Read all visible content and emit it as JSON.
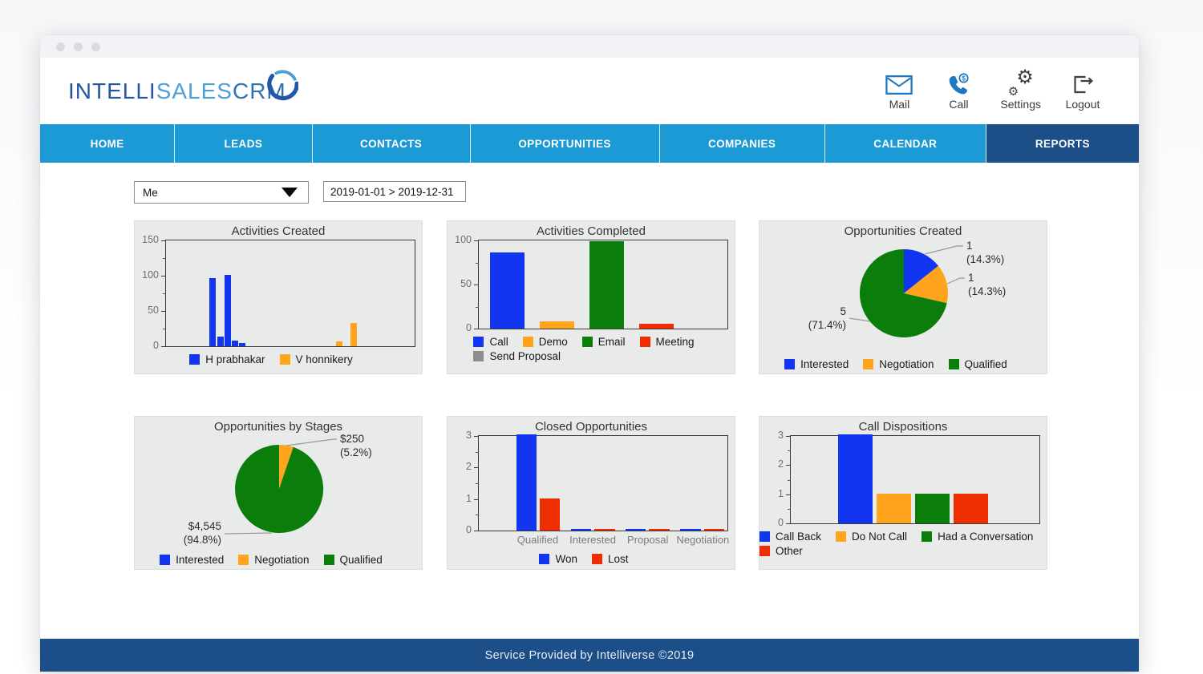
{
  "header": {
    "logo": {
      "part1": "INTELLI",
      "part2": "SALES",
      "part3": "CRM"
    },
    "actions": [
      {
        "label": "Mail"
      },
      {
        "label": "Call"
      },
      {
        "label": "Settings"
      },
      {
        "label": "Logout"
      }
    ]
  },
  "nav": {
    "tabs": [
      {
        "label": "HOME"
      },
      {
        "label": "LEADS"
      },
      {
        "label": "CONTACTS"
      },
      {
        "label": "OPPORTUNITIES"
      },
      {
        "label": "COMPANIES"
      },
      {
        "label": "CALENDAR"
      },
      {
        "label": "REPORTS",
        "active": true
      }
    ]
  },
  "filters": {
    "owner_select": {
      "value": "Me"
    },
    "date_range": {
      "value": "2019-01-01 > 2019-12-31"
    }
  },
  "colors": {
    "nav_blue": "#1b9ad6",
    "nav_active": "#1c4e87",
    "footer_bg": "#1c4e87",
    "icon_blue": "#1d78c1",
    "icon_gray": "#3f3f3f",
    "logo_dark": "#2456a6",
    "logo_light": "#4f9fd6",
    "logo_mid": "#2e72b4",
    "panel_bg": "#e9eaea",
    "series_blue": "#1236f0",
    "series_orange": "#ffa41c",
    "series_green": "#0a7d0a",
    "series_red": "#ee2e00",
    "series_gray": "#8d8d8d"
  },
  "charts": [
    {
      "chart_data": {
        "type": "bar",
        "title": "Activities Created",
        "ylim": [
          0,
          150
        ],
        "yticks": [
          0,
          50,
          100,
          150
        ],
        "bar_width": 0.026,
        "bars": [
          {
            "x": 0.175,
            "value": 95,
            "color": "#1236f0",
            "series": "H prabhakar"
          },
          {
            "x": 0.205,
            "value": 13,
            "color": "#1236f0",
            "series": "H prabhakar"
          },
          {
            "x": 0.235,
            "value": 100,
            "color": "#1236f0",
            "series": "H prabhakar"
          },
          {
            "x": 0.264,
            "value": 8,
            "color": "#1236f0",
            "series": "H prabhakar"
          },
          {
            "x": 0.292,
            "value": 5,
            "color": "#1236f0",
            "series": "H prabhakar"
          },
          {
            "x": 0.685,
            "value": 7,
            "color": "#ffa41c",
            "series": "V honnikery"
          },
          {
            "x": 0.742,
            "value": 32,
            "color": "#ffa41c",
            "series": "V honnikery"
          }
        ],
        "legend": [
          {
            "label": "H prabhakar",
            "color": "#1236f0",
            "row": 0
          },
          {
            "label": "V honnikery",
            "color": "#ffa41c",
            "row": 0
          }
        ]
      }
    },
    {
      "chart_data": {
        "type": "bar",
        "title": "Activities Completed",
        "ylim": [
          0,
          100
        ],
        "yticks": [
          0,
          50,
          100
        ],
        "bars": [
          {
            "x": 0.045,
            "w": 0.14,
            "value": 85,
            "color": "#1236f0",
            "label": "Call"
          },
          {
            "x": 0.245,
            "w": 0.14,
            "value": 8,
            "color": "#ffa41c",
            "label": "Demo"
          },
          {
            "x": 0.445,
            "w": 0.14,
            "value": 97,
            "color": "#0a7d0a",
            "label": "Email"
          },
          {
            "x": 0.645,
            "w": 0.14,
            "value": 5,
            "color": "#ee2e00",
            "label": "Meeting"
          },
          {
            "x": 0.845,
            "w": 0.14,
            "value": 0,
            "color": "#8d8d8d",
            "label": "Send Proposal"
          }
        ],
        "legend": [
          {
            "label": "Call",
            "color": "#1236f0",
            "row": 0
          },
          {
            "label": "Demo",
            "color": "#ffa41c",
            "row": 0
          },
          {
            "label": "Email",
            "color": "#0a7d0a",
            "row": 0
          },
          {
            "label": "Meeting",
            "color": "#ee2e00",
            "row": 0
          },
          {
            "label": "Send Proposal",
            "color": "#8d8d8d",
            "row": 1
          }
        ]
      }
    },
    {
      "chart_data": {
        "type": "pie",
        "title": "Opportunities Created",
        "slices": [
          {
            "label": "Interested",
            "value": 1,
            "pct": 14.3,
            "color": "#1236f0",
            "callout": [
              "1",
              "(14.3%)"
            ]
          },
          {
            "label": "Negotiation",
            "value": 1,
            "pct": 14.3,
            "color": "#ffa41c",
            "callout": [
              "1",
              "(14.3%)"
            ]
          },
          {
            "label": "Qualified",
            "value": 5,
            "pct": 71.4,
            "color": "#0a7d0a",
            "callout": [
              "5",
              "(71.4%)"
            ]
          }
        ],
        "legend": [
          {
            "label": "Interested",
            "color": "#1236f0",
            "row": 0
          },
          {
            "label": "Negotiation",
            "color": "#ffa41c",
            "row": 0
          },
          {
            "label": "Qualified",
            "color": "#0a7d0a",
            "row": 0
          }
        ]
      }
    },
    {
      "chart_data": {
        "type": "pie",
        "title": "Opportunities by Stages",
        "slices": [
          {
            "label": "Negotiation",
            "value": 250,
            "pct": 5.2,
            "color": "#ffa41c",
            "callout": [
              "$250",
              "(5.2%)"
            ]
          },
          {
            "label": "Qualified",
            "value": 4545,
            "pct": 94.8,
            "color": "#0a7d0a",
            "callout": [
              "$4,545",
              "(94.8%)"
            ]
          }
        ],
        "legend": [
          {
            "label": "Interested",
            "color": "#1236f0",
            "row": 0
          },
          {
            "label": "Negotiation",
            "color": "#ffa41c",
            "row": 0
          },
          {
            "label": "Qualified",
            "color": "#0a7d0a",
            "row": 0
          }
        ]
      }
    },
    {
      "chart_data": {
        "type": "grouped_bar",
        "title": "Closed Opportunities",
        "ylim": [
          0,
          3
        ],
        "yticks": [
          0,
          1,
          2,
          3
        ],
        "categories": [
          "Qualified",
          "Interested",
          "Proposal",
          "Negotiation"
        ],
        "series": [
          {
            "name": "Won",
            "color": "#1236f0",
            "values": [
              3,
              0,
              0,
              0
            ]
          },
          {
            "name": "Lost",
            "color": "#ee2e00",
            "values": [
              1,
              0,
              0,
              0
            ]
          }
        ],
        "legend": [
          {
            "label": "Won",
            "color": "#1236f0",
            "row": 0
          },
          {
            "label": "Lost",
            "color": "#ee2e00",
            "row": 0
          }
        ]
      }
    },
    {
      "chart_data": {
        "type": "bar",
        "title": "Call Dispositions",
        "ylim": [
          0,
          3
        ],
        "yticks": [
          0,
          1,
          2,
          3
        ],
        "bars": [
          {
            "x": 0.19,
            "w": 0.14,
            "value": 3,
            "color": "#1236f0",
            "label": "Call Back"
          },
          {
            "x": 0.345,
            "w": 0.14,
            "value": 1,
            "color": "#ffa41c",
            "label": "Do Not Call"
          },
          {
            "x": 0.5,
            "w": 0.14,
            "value": 1,
            "color": "#0a7d0a",
            "label": "Had a Conversation"
          },
          {
            "x": 0.655,
            "w": 0.14,
            "value": 1,
            "color": "#ee2e00",
            "label": "Other"
          }
        ],
        "legend": [
          {
            "label": "Call Back",
            "color": "#1236f0",
            "row": 0
          },
          {
            "label": "Do Not Call",
            "color": "#ffa41c",
            "row": 0
          },
          {
            "label": "Had a Conversation",
            "color": "#0a7d0a",
            "row": 0
          },
          {
            "label": "Other",
            "color": "#ee2e00",
            "row": 1
          }
        ]
      }
    }
  ],
  "footer": {
    "text": "Service Provided by Intelliverse ©2019"
  }
}
